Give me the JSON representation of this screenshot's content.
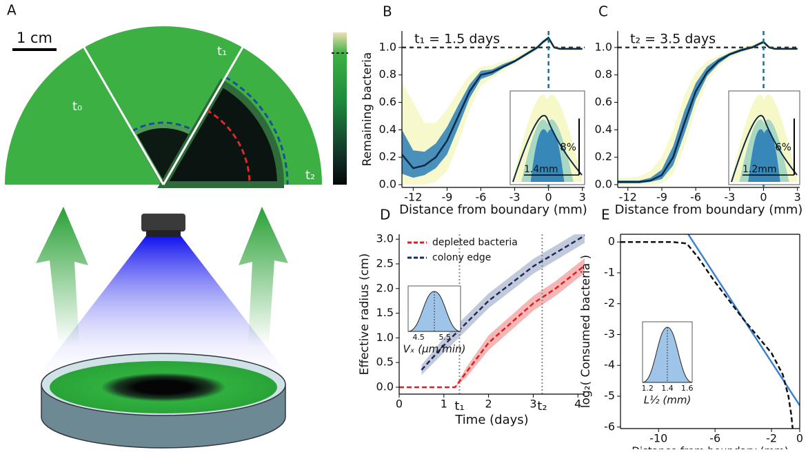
{
  "illustration": {
    "label": "A",
    "scale": "1 cm",
    "sectors": [
      "t₀",
      "t₁",
      "t₂"
    ]
  },
  "chart_data": [
    {
      "type": "line",
      "label": "B",
      "title": "t₁ = 1.5 days",
      "xlabel": "Distance from boundary (mm)",
      "ylabel": "Remaining bacteria",
      "xlim": [
        -13,
        3.2
      ],
      "ylim": [
        -0.02,
        1.12
      ],
      "xticks": [
        -12,
        -9,
        -6,
        -3,
        0,
        3
      ],
      "yticks": [
        {
          "value": 0,
          "label": "0.0"
        },
        0.2,
        0.4,
        0.6,
        0.8,
        {
          "value": 1,
          "label": "1.0"
        }
      ],
      "hline": 1,
      "vline": 0,
      "x": [
        -13,
        -12,
        -11,
        -10,
        -9,
        -8,
        -7,
        -6,
        -5,
        -4,
        -3,
        -2,
        -1,
        -0.5,
        0,
        0.5,
        1,
        2,
        3
      ],
      "series": [
        {
          "color": "#f6f7c2",
          "lower": [
            0,
            0,
            0,
            0.02,
            0.1,
            0.3,
            0.55,
            0.72,
            0.78,
            0.83,
            0.88,
            0.93,
            0.98,
            1.02,
            1.05,
            0.99,
            0.98,
            0.98,
            0.98
          ],
          "upper": [
            0.75,
            0.6,
            0.45,
            0.45,
            0.55,
            0.68,
            0.8,
            0.86,
            0.87,
            0.9,
            0.93,
            0.97,
            1.02,
            1.06,
            1.09,
            1.01,
            1,
            1,
            1
          ]
        },
        {
          "color": "#2a7fb8",
          "lower": [
            0.08,
            0.05,
            0.07,
            0.12,
            0.22,
            0.42,
            0.63,
            0.77,
            0.8,
            0.85,
            0.89,
            0.94,
            0.99,
            1.03,
            1.06,
            0.995,
            0.985,
            0.985,
            0.985
          ],
          "upper": [
            0.4,
            0.25,
            0.24,
            0.3,
            0.42,
            0.58,
            0.73,
            0.83,
            0.84,
            0.88,
            0.91,
            0.96,
            1.01,
            1.05,
            1.08,
            1.005,
            0.995,
            0.995,
            0.995
          ]
        },
        {
          "color": "#0b2a4a",
          "values": [
            0.22,
            0.12,
            0.14,
            0.2,
            0.32,
            0.5,
            0.68,
            0.8,
            0.82,
            0.86,
            0.9,
            0.95,
            1,
            1.04,
            1.07,
            1,
            0.99,
            0.99,
            0.99
          ]
        }
      ],
      "inset": {
        "texts": [
          "8%",
          "1.4mm"
        ]
      }
    },
    {
      "type": "line",
      "label": "C",
      "title": "t₂ = 3.5 days",
      "xlabel": "Distance from boundary (mm)",
      "xlim": [
        -12.9,
        3.2
      ],
      "ylim": [
        -0.02,
        1.12
      ],
      "xticks": [
        -12,
        -9,
        -6,
        -3,
        0,
        3
      ],
      "yticks": [
        {
          "value": 0,
          "label": "0.0"
        },
        0.2,
        0.4,
        0.6,
        0.8,
        {
          "value": 1,
          "label": "1.0"
        }
      ],
      "hline": 1,
      "vline": 0,
      "x": [
        -13,
        -12,
        -11,
        -10,
        -9,
        -8,
        -7,
        -6,
        -5,
        -4,
        -3,
        -2,
        -1,
        -0.5,
        0,
        0.5,
        1,
        2,
        3
      ],
      "series": [
        {
          "color": "#f6f7c2",
          "lower": [
            0,
            0,
            0,
            0,
            0.01,
            0.08,
            0.28,
            0.55,
            0.75,
            0.86,
            0.92,
            0.96,
            0.99,
            1.01,
            1.02,
            0.99,
            0.98,
            0.98,
            0.98
          ],
          "upper": [
            0.05,
            0.05,
            0.06,
            0.1,
            0.2,
            0.4,
            0.65,
            0.82,
            0.9,
            0.94,
            0.97,
            1,
            1.02,
            1.04,
            1.06,
            1.01,
            1,
            1,
            1
          ]
        },
        {
          "color": "#2a7fb8",
          "lower": [
            0.01,
            0.01,
            0.01,
            0.02,
            0.04,
            0.14,
            0.37,
            0.62,
            0.79,
            0.88,
            0.94,
            0.97,
            0.995,
            1.015,
            1.03,
            0.995,
            0.985,
            0.985,
            0.985
          ],
          "upper": [
            0.03,
            0.03,
            0.03,
            0.05,
            0.11,
            0.28,
            0.54,
            0.74,
            0.86,
            0.92,
            0.96,
            0.99,
            1.01,
            1.03,
            1.05,
            1.005,
            0.995,
            0.995,
            0.995
          ]
        },
        {
          "color": "#0b2a4a",
          "values": [
            0.02,
            0.02,
            0.02,
            0.03,
            0.07,
            0.2,
            0.45,
            0.68,
            0.82,
            0.9,
            0.95,
            0.98,
            1,
            1.02,
            1.04,
            1,
            0.99,
            0.99,
            0.99
          ]
        }
      ],
      "inset": {
        "texts": [
          "6%",
          "1.2mm"
        ]
      }
    },
    {
      "type": "line",
      "label": "D",
      "xlabel": "Time (days)",
      "ylabel": "Effective radius (cm)",
      "xlim": [
        0,
        4.15
      ],
      "ylim": [
        -0.14,
        3.1
      ],
      "xticks": [
        0,
        1,
        2,
        3,
        4
      ],
      "yticks": [
        {
          "value": 0,
          "label": "0.0"
        },
        0.5,
        {
          "value": 1,
          "label": "1.0"
        },
        1.5,
        {
          "value": 2,
          "label": "2.0"
        },
        2.5,
        {
          "value": 3,
          "label": "3.0"
        }
      ],
      "markers": [
        {
          "value": 1.35,
          "label": "t₁"
        },
        {
          "value": 3.2,
          "label": "t₂"
        }
      ],
      "series": [
        {
          "color": "#b7bfd4",
          "x": [
            0.5,
            1,
            2,
            3,
            4.2
          ],
          "lower": [
            0.25,
            0.7,
            1.6,
            2.3,
            2.95
          ],
          "upper": [
            0.45,
            1,
            1.9,
            2.6,
            3.25
          ]
        },
        {
          "color": "#f3aaa8",
          "x": [
            1.25,
            1.5,
            2,
            3,
            3.5,
            4.2
          ],
          "lower": [
            0,
            0.2,
            0.75,
            1.55,
            1.85,
            2.35
          ],
          "upper": [
            0,
            0.4,
            1.05,
            1.85,
            2.15,
            2.65
          ]
        },
        {
          "name": "depleted bacteria",
          "color": "#e41a1c",
          "dashed": true,
          "x": [
            0,
            1.25,
            1.5,
            2,
            3,
            3.5,
            4.2
          ],
          "values": [
            0,
            0,
            0.3,
            0.9,
            1.7,
            2,
            2.5
          ]
        },
        {
          "name": "colony edge",
          "color": "#1a2a5a",
          "dashed": true,
          "x": [
            0.5,
            1,
            2,
            3,
            4.2
          ],
          "values": [
            0.35,
            0.85,
            1.75,
            2.45,
            3.1
          ]
        }
      ],
      "inset": {
        "ticks": [
          "4.5",
          "5.5"
        ],
        "label": "Vₓ (μm/min)"
      }
    },
    {
      "type": "line",
      "label": "E",
      "xlabel": "Distance from boundary (mm)",
      "ylabel": "log₂( Consumed bacteria )",
      "frame": true,
      "xlim": [
        -12.7,
        0
      ],
      "ylim": [
        -6.05,
        0.25
      ],
      "xticks": [
        -10,
        -6,
        -2,
        0
      ],
      "yticks": [
        0,
        -1,
        -2,
        -3,
        -4,
        -5,
        -6
      ],
      "series": [
        {
          "color": "#3b83d0",
          "x": [
            -7.9,
            0
          ],
          "values": [
            0.25,
            -5.3
          ]
        },
        {
          "color": "#111111",
          "dashed": true,
          "x": [
            -12.7,
            -9,
            -8,
            -7.2,
            -6,
            -4,
            -2,
            -1.2,
            -0.8,
            -0.6,
            -0.5
          ],
          "values": [
            0,
            0,
            -0.05,
            -0.5,
            -1.3,
            -2.5,
            -3.6,
            -4.3,
            -5,
            -5.6,
            -6.05
          ]
        }
      ],
      "inset": {
        "ticks": [
          "1.2",
          "1.4",
          "1.6"
        ],
        "label": "L½ (mm)"
      }
    }
  ]
}
